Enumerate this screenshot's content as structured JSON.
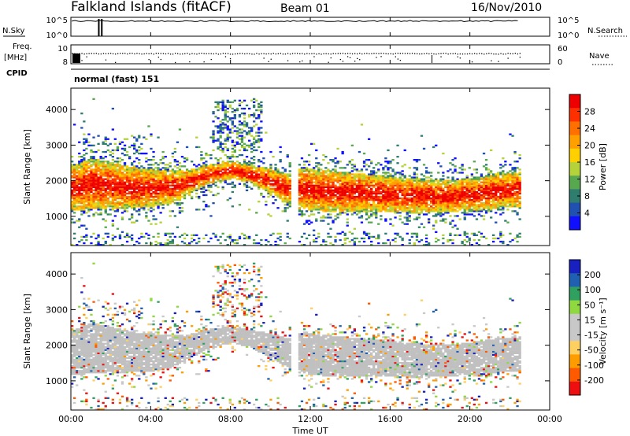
{
  "header": {
    "station": "Falkland Islands (fitACF)",
    "beam": "Beam 01",
    "date": "16/Nov/2010"
  },
  "panels": {
    "nsky_label": "N.Sky",
    "nsearch_label": "N.Search",
    "nsky_ticks": [
      "10^5",
      "10^0"
    ],
    "nsearch_ticks": [
      "10^5",
      "10^0"
    ],
    "freq_label": "Freq.",
    "freq_unit": "[MHz]",
    "freq_ticks": [
      "10",
      "8"
    ],
    "nave_label": "Nave",
    "nave_ticks": [
      "60",
      "0"
    ],
    "cpid_label": "CPID",
    "cpid_value": "normal (fast) 151"
  },
  "colors": {
    "power_scale": [
      "#1010ff",
      "#2050b0",
      "#2e7d6e",
      "#58a850",
      "#b6d23a",
      "#ffd000",
      "#ffa000",
      "#ff7000",
      "#ff3000",
      "#ee0000"
    ],
    "velocity_scale": [
      "#ee1010",
      "#ff5a00",
      "#ff9c00",
      "#ffd060",
      "#c8c8c8",
      "#c8c8c8",
      "#8fd840",
      "#30a060",
      "#2060b0",
      "#1820c0"
    ],
    "ground_scatter": "#c0c0c0"
  },
  "chart_data": [
    {
      "type": "heatmap",
      "title": "Power",
      "xlabel": "Time UT",
      "ylabel": "Slant Range [km]",
      "x_ticks": [
        "00:00",
        "04:00",
        "08:00",
        "12:00",
        "16:00",
        "20:00",
        "00:00"
      ],
      "y_ticks": [
        "1000",
        "2000",
        "3000",
        "4000"
      ],
      "xlim_hours": [
        0,
        24
      ],
      "ylim_km": [
        180,
        4600
      ],
      "colorbar": {
        "label": "Power [dB]",
        "ticks": [
          "4",
          "8",
          "12",
          "16",
          "20",
          "24",
          "28"
        ],
        "range": [
          0,
          30
        ]
      },
      "data_gap_hours": [
        11.0,
        11.3
      ],
      "echo_band_edges": {
        "time_h": [
          0.0,
          1.0,
          2.0,
          3.0,
          4.0,
          5.0,
          6.0,
          7.0,
          8.0,
          9.0,
          10.0,
          11.0,
          11.3,
          12.0,
          13.0,
          14.0,
          15.0,
          16.0,
          17.0,
          18.0,
          19.0,
          20.0,
          21.0,
          22.0,
          22.5
        ],
        "lower_km": [
          1150,
          1180,
          1200,
          1220,
          1250,
          1350,
          1650,
          1900,
          2050,
          1900,
          1600,
          1300,
          1200,
          1150,
          1100,
          1100,
          1120,
          1100,
          1080,
          1080,
          1100,
          1150,
          1200,
          1250,
          1250
        ],
        "upper_km": [
          2400,
          2600,
          2500,
          2350,
          2300,
          2250,
          2300,
          2450,
          2500,
          2400,
          2300,
          2150,
          2300,
          2300,
          2250,
          2200,
          2150,
          2100,
          2050,
          2000,
          2000,
          2050,
          2150,
          2200,
          2250
        ]
      }
    },
    {
      "type": "heatmap",
      "title": "Velocity",
      "xlabel": "Time UT",
      "ylabel": "Slant Range [km]",
      "x_ticks": [
        "00:00",
        "04:00",
        "08:00",
        "12:00",
        "16:00",
        "20:00",
        "00:00"
      ],
      "y_ticks": [
        "1000",
        "2000",
        "3000",
        "4000"
      ],
      "xlim_hours": [
        0,
        24
      ],
      "ylim_km": [
        180,
        4600
      ],
      "colorbar": {
        "label": "Velocity [m s⁻¹]",
        "ticks": [
          "200",
          "100",
          "50",
          "15",
          "-15",
          "-50",
          "-100",
          "-200"
        ],
        "range": [
          -250,
          250
        ]
      },
      "note_visible": "echoes dominated by ground scatter (gray)"
    }
  ]
}
